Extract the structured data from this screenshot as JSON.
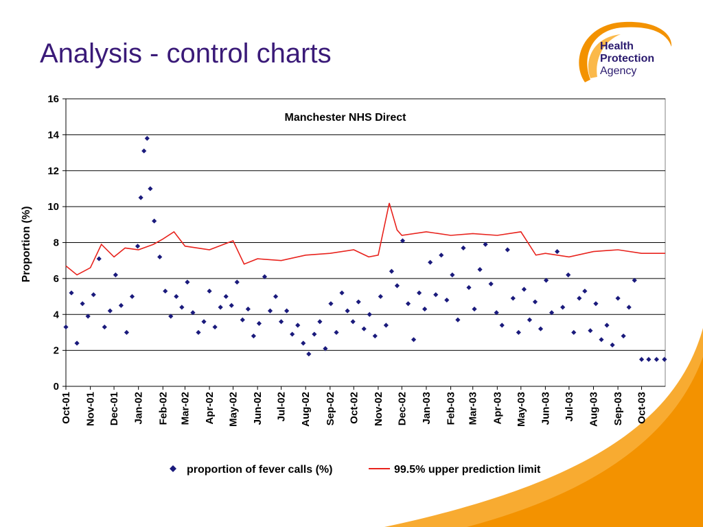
{
  "slide": {
    "title": "Analysis -  control charts"
  },
  "logo": {
    "line1": "Health",
    "line2": "Protection",
    "line3": "Agency",
    "brand_color": "#f39200",
    "text_color": "#2a1a6e"
  },
  "colors": {
    "title": "#3a1a78",
    "scatter": "#1a1a7c",
    "limit_line": "#e8221c",
    "corner_accent": "#f7a21b"
  },
  "chart_data": {
    "type": "scatter",
    "title": "Manchester NHS Direct",
    "xlabel": "",
    "ylabel": "Proportion (%)",
    "ylim": [
      0,
      16
    ],
    "yticks": [
      "0",
      "2",
      "4",
      "6",
      "8",
      "10",
      "12",
      "14",
      "16"
    ],
    "xlim": [
      "2001-10-01",
      "2003-10-31"
    ],
    "xticks": [
      {
        "date": "2001-10-01",
        "label": "Oct-01"
      },
      {
        "date": "2001-11-01",
        "label": "Nov-01"
      },
      {
        "date": "2001-12-01",
        "label": "Dec-01"
      },
      {
        "date": "2002-01-01",
        "label": "Jan-02"
      },
      {
        "date": "2002-02-01",
        "label": "Feb-02"
      },
      {
        "date": "2002-03-01",
        "label": "Mar-02"
      },
      {
        "date": "2002-04-01",
        "label": "Apr-02"
      },
      {
        "date": "2002-05-01",
        "label": "May-02"
      },
      {
        "date": "2002-06-01",
        "label": "Jun-02"
      },
      {
        "date": "2002-07-01",
        "label": "Jul-02"
      },
      {
        "date": "2002-08-01",
        "label": "Aug-02"
      },
      {
        "date": "2002-09-01",
        "label": "Sep-02"
      },
      {
        "date": "2002-10-01",
        "label": "Oct-02"
      },
      {
        "date": "2002-11-01",
        "label": "Nov-02"
      },
      {
        "date": "2002-12-01",
        "label": "Dec-02"
      },
      {
        "date": "2003-01-01",
        "label": "Jan-03"
      },
      {
        "date": "2003-02-01",
        "label": "Feb-03"
      },
      {
        "date": "2003-03-01",
        "label": "Mar-03"
      },
      {
        "date": "2003-04-01",
        "label": "Apr-03"
      },
      {
        "date": "2003-05-01",
        "label": "May-03"
      },
      {
        "date": "2003-06-01",
        "label": "Jun-03"
      },
      {
        "date": "2003-07-01",
        "label": "Jul-03"
      },
      {
        "date": "2003-08-01",
        "label": "Aug-03"
      },
      {
        "date": "2003-09-01",
        "label": "Sep-03"
      },
      {
        "date": "2003-10-01",
        "label": "Oct-03"
      }
    ],
    "grid": "horizontal",
    "legend_position": "bottom",
    "series": [
      {
        "name": "proportion of fever calls (%)",
        "kind": "scatter",
        "color": "#1a1a7c",
        "points": [
          {
            "x": "2001-10-01",
            "y": 3.3
          },
          {
            "x": "2001-10-08",
            "y": 5.2
          },
          {
            "x": "2001-10-15",
            "y": 2.4
          },
          {
            "x": "2001-10-22",
            "y": 4.6
          },
          {
            "x": "2001-10-29",
            "y": 3.9
          },
          {
            "x": "2001-11-05",
            "y": 5.1
          },
          {
            "x": "2001-11-12",
            "y": 7.1
          },
          {
            "x": "2001-11-19",
            "y": 3.3
          },
          {
            "x": "2001-11-26",
            "y": 4.2
          },
          {
            "x": "2001-12-03",
            "y": 6.2
          },
          {
            "x": "2001-12-10",
            "y": 4.5
          },
          {
            "x": "2001-12-17",
            "y": 3.0
          },
          {
            "x": "2001-12-24",
            "y": 5.0
          },
          {
            "x": "2001-12-31",
            "y": 7.8
          },
          {
            "x": "2002-01-04",
            "y": 10.5
          },
          {
            "x": "2002-01-08",
            "y": 13.1
          },
          {
            "x": "2002-01-12",
            "y": 13.8
          },
          {
            "x": "2002-01-16",
            "y": 11.0
          },
          {
            "x": "2002-01-21",
            "y": 9.2
          },
          {
            "x": "2002-01-28",
            "y": 7.2
          },
          {
            "x": "2002-02-04",
            "y": 5.3
          },
          {
            "x": "2002-02-11",
            "y": 3.9
          },
          {
            "x": "2002-02-18",
            "y": 5.0
          },
          {
            "x": "2002-02-25",
            "y": 4.4
          },
          {
            "x": "2002-03-04",
            "y": 5.8
          },
          {
            "x": "2002-03-11",
            "y": 4.1
          },
          {
            "x": "2002-03-18",
            "y": 3.0
          },
          {
            "x": "2002-03-25",
            "y": 3.6
          },
          {
            "x": "2002-04-01",
            "y": 5.3
          },
          {
            "x": "2002-04-08",
            "y": 3.3
          },
          {
            "x": "2002-04-15",
            "y": 4.4
          },
          {
            "x": "2002-04-22",
            "y": 5.0
          },
          {
            "x": "2002-04-29",
            "y": 4.5
          },
          {
            "x": "2002-05-06",
            "y": 5.8
          },
          {
            "x": "2002-05-13",
            "y": 3.7
          },
          {
            "x": "2002-05-20",
            "y": 4.3
          },
          {
            "x": "2002-05-27",
            "y": 2.8
          },
          {
            "x": "2002-06-03",
            "y": 3.5
          },
          {
            "x": "2002-06-10",
            "y": 6.1
          },
          {
            "x": "2002-06-17",
            "y": 4.2
          },
          {
            "x": "2002-06-24",
            "y": 5.0
          },
          {
            "x": "2002-07-01",
            "y": 3.6
          },
          {
            "x": "2002-07-08",
            "y": 4.2
          },
          {
            "x": "2002-07-15",
            "y": 2.9
          },
          {
            "x": "2002-07-22",
            "y": 3.4
          },
          {
            "x": "2002-07-29",
            "y": 2.4
          },
          {
            "x": "2002-08-05",
            "y": 1.8
          },
          {
            "x": "2002-08-12",
            "y": 2.9
          },
          {
            "x": "2002-08-19",
            "y": 3.6
          },
          {
            "x": "2002-08-26",
            "y": 2.1
          },
          {
            "x": "2002-09-02",
            "y": 4.6
          },
          {
            "x": "2002-09-09",
            "y": 3.0
          },
          {
            "x": "2002-09-16",
            "y": 5.2
          },
          {
            "x": "2002-09-23",
            "y": 4.2
          },
          {
            "x": "2002-09-30",
            "y": 3.6
          },
          {
            "x": "2002-10-07",
            "y": 4.7
          },
          {
            "x": "2002-10-14",
            "y": 3.2
          },
          {
            "x": "2002-10-21",
            "y": 4.0
          },
          {
            "x": "2002-10-28",
            "y": 2.8
          },
          {
            "x": "2002-11-04",
            "y": 5.0
          },
          {
            "x": "2002-11-11",
            "y": 3.4
          },
          {
            "x": "2002-11-18",
            "y": 6.4
          },
          {
            "x": "2002-11-25",
            "y": 5.6
          },
          {
            "x": "2002-12-02",
            "y": 8.1
          },
          {
            "x": "2002-12-09",
            "y": 4.6
          },
          {
            "x": "2002-12-16",
            "y": 2.6
          },
          {
            "x": "2002-12-23",
            "y": 5.2
          },
          {
            "x": "2002-12-30",
            "y": 4.3
          },
          {
            "x": "2003-01-06",
            "y": 6.9
          },
          {
            "x": "2003-01-13",
            "y": 5.1
          },
          {
            "x": "2003-01-20",
            "y": 7.3
          },
          {
            "x": "2003-01-27",
            "y": 4.8
          },
          {
            "x": "2003-02-03",
            "y": 6.2
          },
          {
            "x": "2003-02-10",
            "y": 3.7
          },
          {
            "x": "2003-02-17",
            "y": 7.7
          },
          {
            "x": "2003-02-24",
            "y": 5.5
          },
          {
            "x": "2003-03-03",
            "y": 4.3
          },
          {
            "x": "2003-03-10",
            "y": 6.5
          },
          {
            "x": "2003-03-17",
            "y": 7.9
          },
          {
            "x": "2003-03-24",
            "y": 5.7
          },
          {
            "x": "2003-03-31",
            "y": 4.1
          },
          {
            "x": "2003-04-07",
            "y": 3.4
          },
          {
            "x": "2003-04-14",
            "y": 7.6
          },
          {
            "x": "2003-04-21",
            "y": 4.9
          },
          {
            "x": "2003-04-28",
            "y": 3.0
          },
          {
            "x": "2003-05-05",
            "y": 5.4
          },
          {
            "x": "2003-05-12",
            "y": 3.7
          },
          {
            "x": "2003-05-19",
            "y": 4.7
          },
          {
            "x": "2003-05-26",
            "y": 3.2
          },
          {
            "x": "2003-06-02",
            "y": 5.9
          },
          {
            "x": "2003-06-09",
            "y": 4.1
          },
          {
            "x": "2003-06-16",
            "y": 7.5
          },
          {
            "x": "2003-06-23",
            "y": 4.4
          },
          {
            "x": "2003-06-30",
            "y": 6.2
          },
          {
            "x": "2003-07-07",
            "y": 3.0
          },
          {
            "x": "2003-07-14",
            "y": 4.9
          },
          {
            "x": "2003-07-21",
            "y": 5.3
          },
          {
            "x": "2003-07-28",
            "y": 3.1
          },
          {
            "x": "2003-08-04",
            "y": 4.6
          },
          {
            "x": "2003-08-11",
            "y": 2.6
          },
          {
            "x": "2003-08-18",
            "y": 3.4
          },
          {
            "x": "2003-08-25",
            "y": 2.3
          },
          {
            "x": "2003-09-01",
            "y": 4.9
          },
          {
            "x": "2003-09-08",
            "y": 2.8
          },
          {
            "x": "2003-09-15",
            "y": 4.4
          },
          {
            "x": "2003-09-22",
            "y": 5.9
          },
          {
            "x": "2003-10-01",
            "y": 1.5
          },
          {
            "x": "2003-10-10",
            "y": 1.5
          },
          {
            "x": "2003-10-20",
            "y": 1.5
          },
          {
            "x": "2003-10-30",
            "y": 1.5
          }
        ]
      },
      {
        "name": "99.5% upper prediction limit",
        "kind": "line",
        "color": "#e8221c",
        "points": [
          {
            "x": "2001-10-01",
            "y": 6.7
          },
          {
            "x": "2001-10-15",
            "y": 6.2
          },
          {
            "x": "2001-11-01",
            "y": 6.6
          },
          {
            "x": "2001-11-15",
            "y": 7.9
          },
          {
            "x": "2001-12-01",
            "y": 7.2
          },
          {
            "x": "2001-12-15",
            "y": 7.7
          },
          {
            "x": "2002-01-01",
            "y": 7.6
          },
          {
            "x": "2002-01-20",
            "y": 7.9
          },
          {
            "x": "2002-02-01",
            "y": 8.2
          },
          {
            "x": "2002-02-15",
            "y": 8.6
          },
          {
            "x": "2002-03-01",
            "y": 7.8
          },
          {
            "x": "2002-04-01",
            "y": 7.6
          },
          {
            "x": "2002-05-01",
            "y": 8.1
          },
          {
            "x": "2002-05-15",
            "y": 6.8
          },
          {
            "x": "2002-06-01",
            "y": 7.1
          },
          {
            "x": "2002-07-01",
            "y": 7.0
          },
          {
            "x": "2002-08-01",
            "y": 7.3
          },
          {
            "x": "2002-09-01",
            "y": 7.4
          },
          {
            "x": "2002-10-01",
            "y": 7.6
          },
          {
            "x": "2002-10-20",
            "y": 7.2
          },
          {
            "x": "2002-11-01",
            "y": 7.3
          },
          {
            "x": "2002-11-15",
            "y": 10.2
          },
          {
            "x": "2002-11-25",
            "y": 8.7
          },
          {
            "x": "2002-12-01",
            "y": 8.4
          },
          {
            "x": "2003-01-01",
            "y": 8.6
          },
          {
            "x": "2003-02-01",
            "y": 8.4
          },
          {
            "x": "2003-03-01",
            "y": 8.5
          },
          {
            "x": "2003-04-01",
            "y": 8.4
          },
          {
            "x": "2003-05-01",
            "y": 8.6
          },
          {
            "x": "2003-05-20",
            "y": 7.3
          },
          {
            "x": "2003-06-01",
            "y": 7.4
          },
          {
            "x": "2003-07-01",
            "y": 7.2
          },
          {
            "x": "2003-08-01",
            "y": 7.5
          },
          {
            "x": "2003-09-01",
            "y": 7.6
          },
          {
            "x": "2003-10-01",
            "y": 7.4
          },
          {
            "x": "2003-10-31",
            "y": 7.4
          }
        ]
      }
    ]
  }
}
